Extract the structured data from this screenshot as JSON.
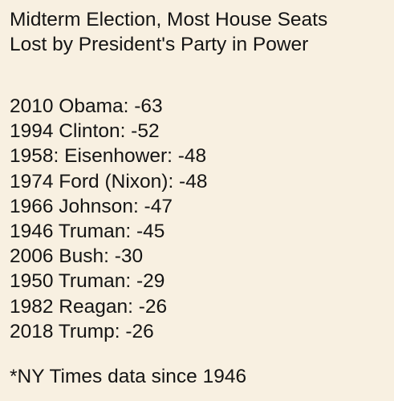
{
  "title": {
    "line1": "Midterm Election, Most House Seats",
    "line2": "Lost by President's Party in Power"
  },
  "entries": [
    "2010 Obama: -63",
    "1994 Clinton: -52",
    "1958: Eisenhower: -48",
    "1974 Ford (Nixon): -48",
    "1966 Johnson: -47",
    "1946 Truman: -45",
    "2006 Bush: -30",
    "1950 Truman: -29",
    "1982 Reagan: -26",
    "2018 Trump: -26"
  ],
  "footnote": "*NY Times data since 1946",
  "colors": {
    "background": "#f8f0e1",
    "text": "#141414"
  }
}
